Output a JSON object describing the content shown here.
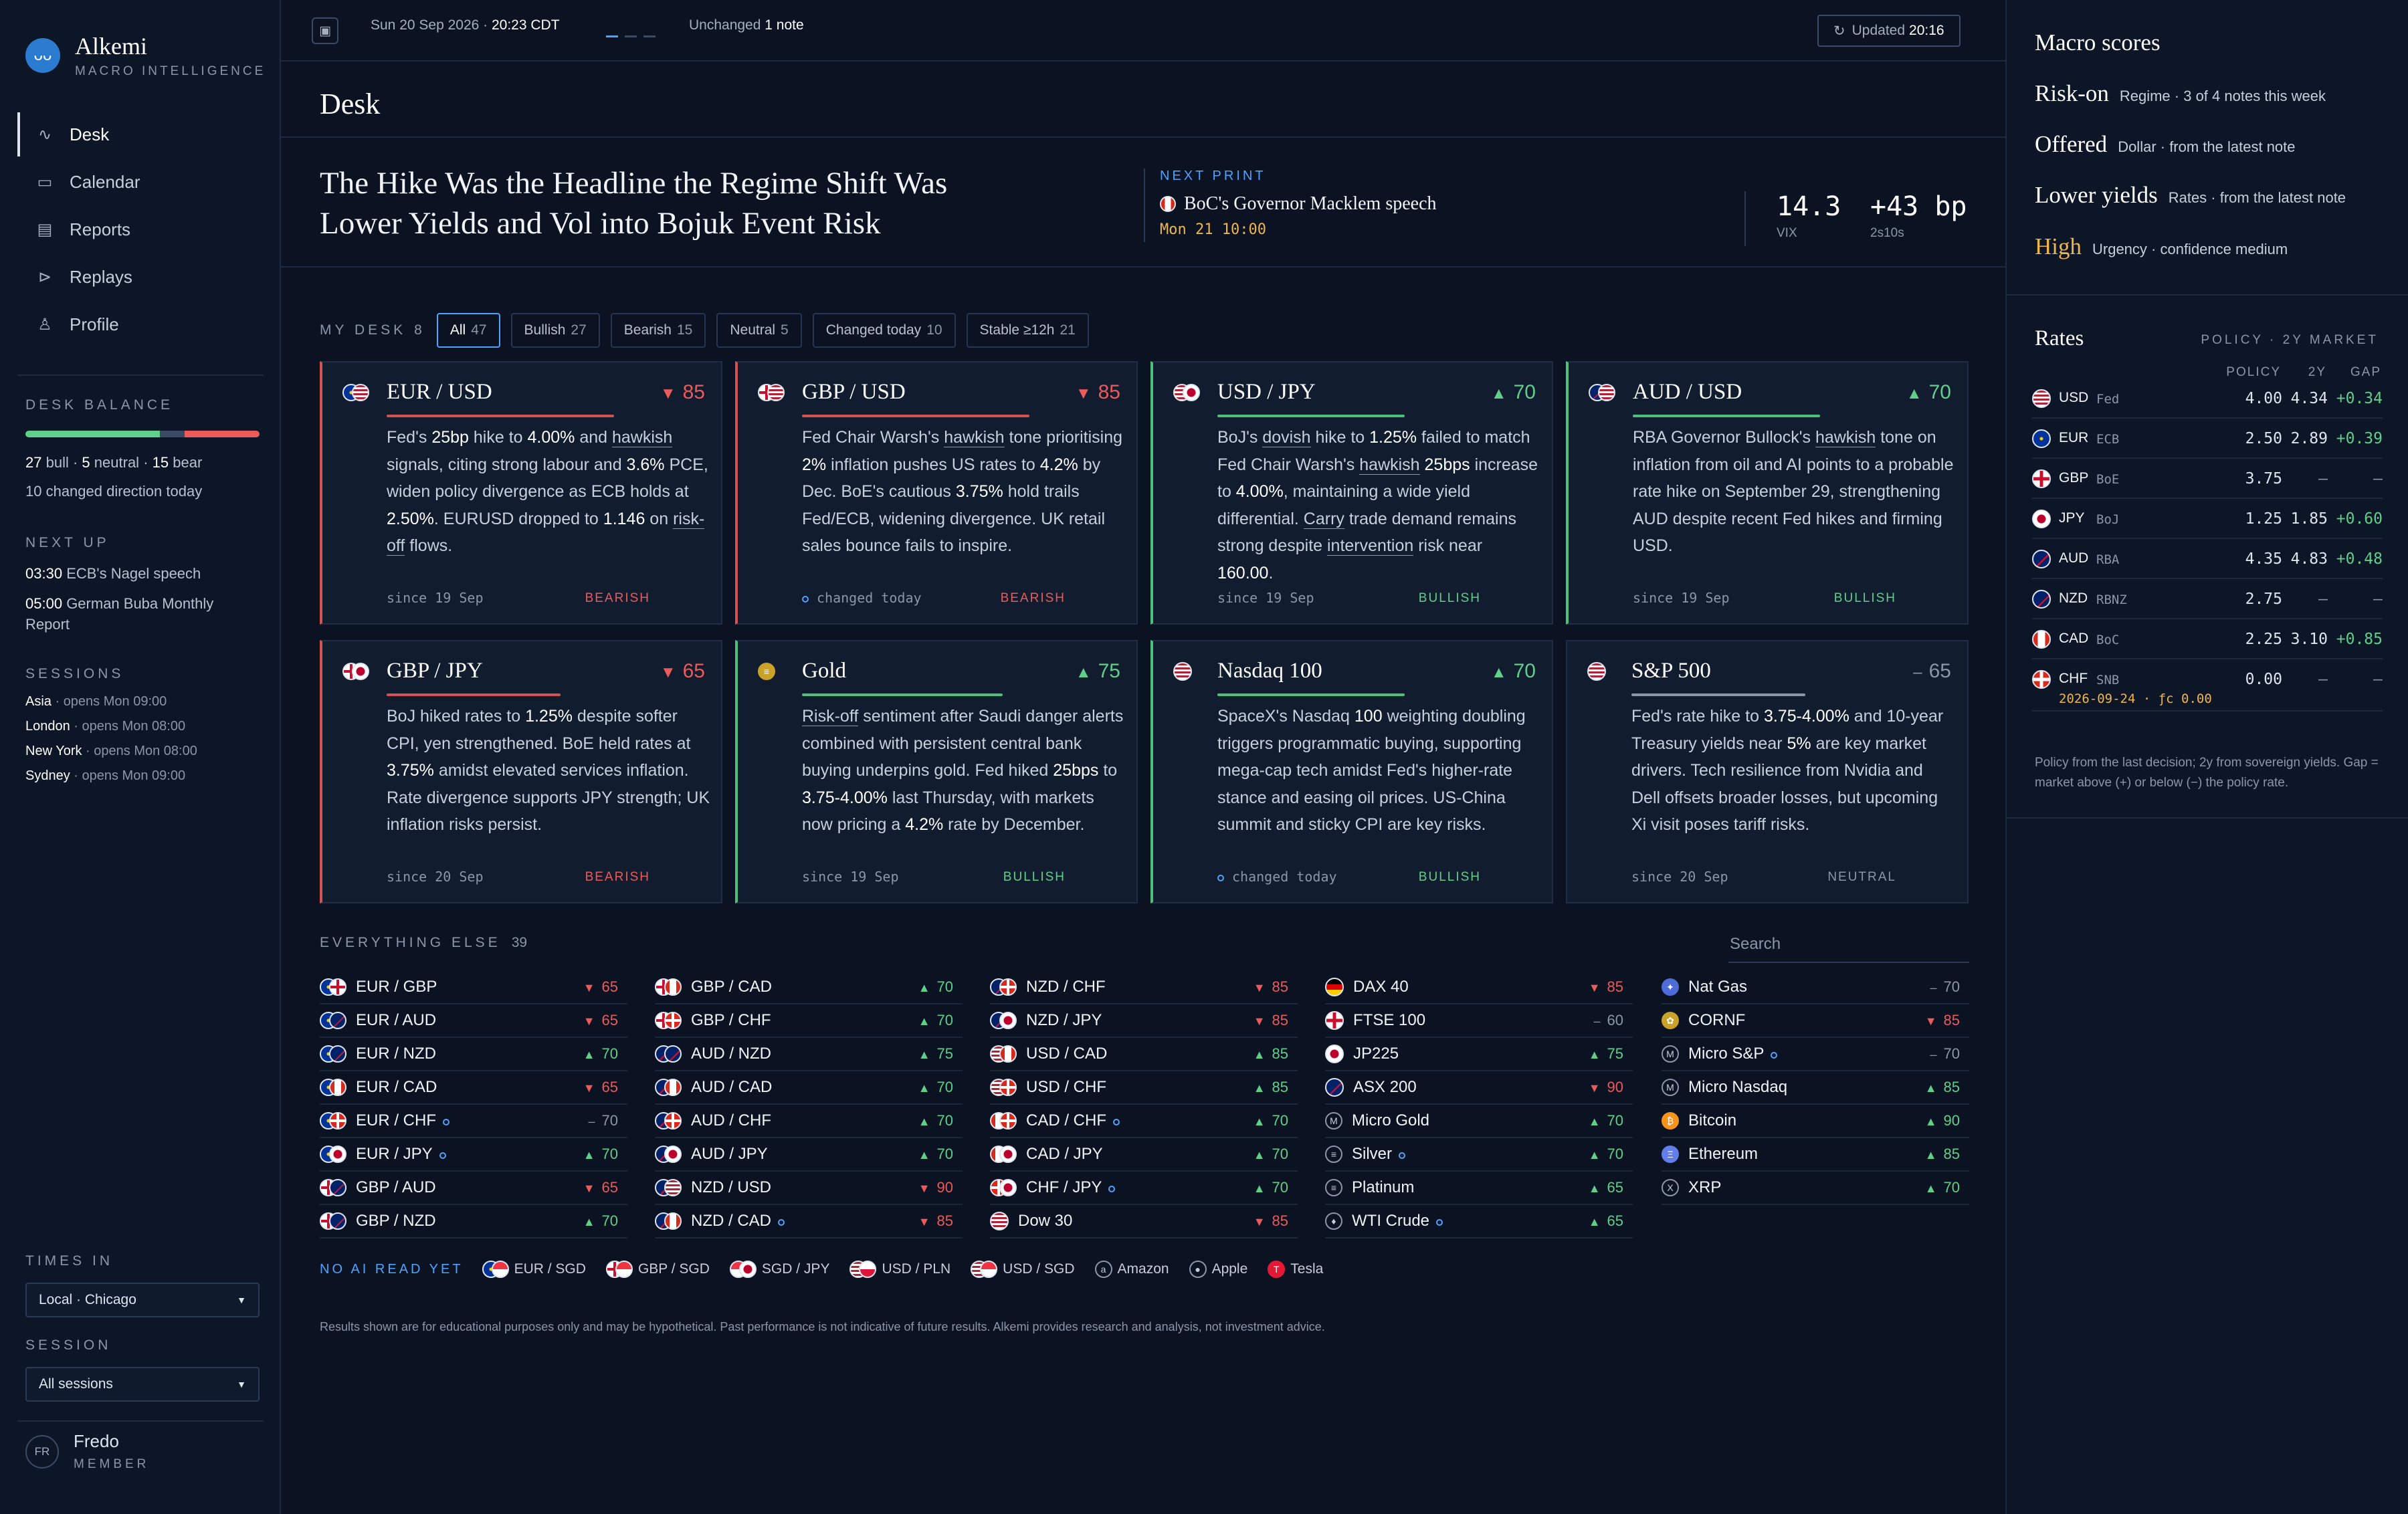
{
  "brand": {
    "name": "Alkemi",
    "sub": "MACRO INTELLIGENCE",
    "logo_icon": "owl-icon"
  },
  "nav": [
    {
      "label": "Desk",
      "icon": "pulse-icon",
      "active": true
    },
    {
      "label": "Calendar",
      "icon": "calendar-icon"
    },
    {
      "label": "Reports",
      "icon": "document-icon"
    },
    {
      "label": "Replays",
      "icon": "play-circle-icon"
    },
    {
      "label": "Profile",
      "icon": "user-icon"
    }
  ],
  "desk_balance": {
    "label": "DESK BALANCE",
    "bull": "27",
    "neutral": "5",
    "bear": "15",
    "bull_word": "bull",
    "neutral_word": "neutral",
    "bear_word": "bear",
    "changed": "10 changed direction today",
    "colors": {
      "bull": "#5fcf8a",
      "neutral": "#3b4b66",
      "bear": "#ec5a5a"
    }
  },
  "next_up": {
    "label": "NEXT UP",
    "items": [
      {
        "time": "03:30",
        "text": "ECB's Nagel speech"
      },
      {
        "time": "05:00",
        "text": "German Buba Monthly Report"
      }
    ]
  },
  "sessions": {
    "label": "SESSIONS",
    "items": [
      {
        "name": "Asia",
        "status": "opens Mon 09:00"
      },
      {
        "name": "London",
        "status": "opens Mon 08:00"
      },
      {
        "name": "New York",
        "status": "opens Mon 08:00"
      },
      {
        "name": "Sydney",
        "status": "opens Mon 09:00"
      }
    ]
  },
  "times_in": {
    "label": "TIMES IN",
    "value": "Local · Chicago"
  },
  "session_select": {
    "label": "SESSION",
    "value": "All sessions"
  },
  "user": {
    "initials": "FR",
    "name": "Fredo",
    "role": "MEMBER"
  },
  "topbar": {
    "date": "Sun 20 Sep 2026 ·",
    "time": "20:23 CDT",
    "unchanged": "Unchanged",
    "note": "1 note",
    "updated_label": "Updated",
    "updated_time": "20:16"
  },
  "page_title": "Desk",
  "headline": "The Hike Was the Headline the Regime Shift Was Lower Yields and Vol into Bojuk Event Risk",
  "next_print": {
    "label": "NEXT PRINT",
    "title": "BoC's Governor Macklem speech",
    "time": "Mon 21 10:00"
  },
  "stats": [
    {
      "value": "14.3",
      "label": "VIX"
    },
    {
      "value": "+43 bp",
      "label": "2s10s"
    }
  ],
  "my_desk": {
    "label": "MY DESK",
    "count": "8",
    "filters": [
      {
        "label": "All",
        "count": "47",
        "active": true
      },
      {
        "label": "Bullish",
        "count": "27"
      },
      {
        "label": "Bearish",
        "count": "15"
      },
      {
        "label": "Neutral",
        "count": "5"
      },
      {
        "label": "Changed today",
        "count": "10"
      },
      {
        "label": "Stable ≥12h",
        "count": "21"
      }
    ]
  },
  "cards": [
    {
      "name": "EUR / USD",
      "dir": "▼",
      "score": "85",
      "stance": "BEARISH",
      "since": "since 19 Sep",
      "fill": 0.85,
      "body": "Fed's <b>25bp</b> hike to <b>4.00%</b> and <u>hawkish</u> signals, citing strong labour and <b>3.6%</b> PCE, widen policy divergence as ECB holds at <b>2.50%</b>. EURUSD dropped to <b>1.146</b> on <u>risk-off</u> flows."
    },
    {
      "name": "GBP / USD",
      "dir": "▼",
      "score": "85",
      "stance": "BEARISH",
      "since": "changed today",
      "changed": true,
      "fill": 0.85,
      "body": "Fed Chair Warsh's <u>hawkish</u> tone prioritising <b>2%</b> inflation pushes US rates to <b>4.2%</b> by Dec. BoE's cautious <b>3.75%</b> hold trails Fed/ECB, widening divergence. UK retail sales bounce fails to inspire."
    },
    {
      "name": "USD / JPY",
      "dir": "▲",
      "score": "70",
      "stance": "BULLISH",
      "since": "since 19 Sep",
      "fill": 0.7,
      "body": "BoJ's <u>dovish</u> hike to <b>1.25%</b> failed to match Fed Chair Warsh's <u>hawkish</u> <b>25bps</b> increase to <b>4.00%</b>, maintaining a wide yield differential. <u>Carry</u> trade demand remains strong despite <u>intervention</u> risk near <b>160.00</b>."
    },
    {
      "name": "AUD / USD",
      "dir": "▲",
      "score": "70",
      "stance": "BULLISH",
      "since": "since 19 Sep",
      "fill": 0.7,
      "body": "RBA Governor Bullock's <u>hawkish</u> tone on inflation from oil and AI points to a probable rate hike on September 29, strengthening AUD despite recent Fed hikes and firming USD."
    },
    {
      "name": "GBP / JPY",
      "dir": "▼",
      "score": "65",
      "stance": "BEARISH",
      "since": "since 20 Sep",
      "fill": 0.65,
      "body": "BoJ hiked rates to <b>1.25%</b> despite softer CPI, yen strengthened. BoE held rates at <b>3.75%</b> amidst elevated services inflation. Rate divergence supports JPY strength; UK inflation risks persist."
    },
    {
      "name": "Gold",
      "dir": "▲",
      "score": "75",
      "stance": "BULLISH",
      "since": "since 19 Sep",
      "fill": 0.75,
      "body": "<u>Risk-off</u> sentiment after Saudi danger alerts combined with persistent central bank buying underpins gold. Fed hiked <b>25bps</b> to <b>3.75-4.00%</b> last Thursday, with markets now pricing a <b>4.2%</b> rate by December."
    },
    {
      "name": "Nasdaq 100",
      "dir": "▲",
      "score": "70",
      "stance": "BULLISH",
      "since": "changed today",
      "changed": true,
      "fill": 0.7,
      "body": "SpaceX's Nasdaq <b>100</b> weighting doubling triggers programmatic buying, supporting mega-cap tech amidst Fed's higher-rate stance and easing oil prices. US-China summit and sticky CPI are key risks."
    },
    {
      "name": "S&P 500",
      "dir": "–",
      "score": "65",
      "stance": "NEUTRAL",
      "since": "since 20 Sep",
      "fill": 0.65,
      "body": "Fed's rate hike to <b>3.75-4.00%</b> and 10-year Treasury yields near <b>5%</b> are key market drivers. Tech resilience from Nvidia and Dell offsets broader losses, but upcoming Xi visit poses tariff risks."
    }
  ],
  "everything_else": {
    "label": "EVERYTHING ELSE",
    "count": "39",
    "search_placeholder": "Search",
    "columns": [
      [
        {
          "name": "EUR / GBP",
          "dir": "▼",
          "score": "65"
        },
        {
          "name": "EUR / AUD",
          "dir": "▼",
          "score": "65"
        },
        {
          "name": "EUR / NZD",
          "dir": "▲",
          "score": "70"
        },
        {
          "name": "EUR / CAD",
          "dir": "▼",
          "score": "65"
        },
        {
          "name": "EUR / CHF",
          "dir": "–",
          "score": "70",
          "dot": true
        },
        {
          "name": "EUR / JPY",
          "dir": "▲",
          "score": "70",
          "dot": true
        },
        {
          "name": "GBP / AUD",
          "dir": "▼",
          "score": "65"
        },
        {
          "name": "GBP / NZD",
          "dir": "▲",
          "score": "70"
        }
      ],
      [
        {
          "name": "GBP / CAD",
          "dir": "▲",
          "score": "70"
        },
        {
          "name": "GBP / CHF",
          "dir": "▲",
          "score": "70"
        },
        {
          "name": "AUD / NZD",
          "dir": "▲",
          "score": "75"
        },
        {
          "name": "AUD / CAD",
          "dir": "▲",
          "score": "70"
        },
        {
          "name": "AUD / CHF",
          "dir": "▲",
          "score": "70"
        },
        {
          "name": "AUD / JPY",
          "dir": "▲",
          "score": "70"
        },
        {
          "name": "NZD / USD",
          "dir": "▼",
          "score": "90"
        },
        {
          "name": "NZD / CAD",
          "dir": "▼",
          "score": "85",
          "dot": true
        }
      ],
      [
        {
          "name": "NZD / CHF",
          "dir": "▼",
          "score": "85"
        },
        {
          "name": "NZD / JPY",
          "dir": "▼",
          "score": "85"
        },
        {
          "name": "USD / CAD",
          "dir": "▲",
          "score": "85"
        },
        {
          "name": "USD / CHF",
          "dir": "▲",
          "score": "85"
        },
        {
          "name": "CAD / CHF",
          "dir": "▲",
          "score": "70",
          "dot": true
        },
        {
          "name": "CAD / JPY",
          "dir": "▲",
          "score": "70"
        },
        {
          "name": "CHF / JPY",
          "dir": "▲",
          "score": "70",
          "dot": true
        },
        {
          "name": "Dow 30",
          "dir": "▼",
          "score": "85"
        }
      ],
      [
        {
          "name": "DAX 40",
          "dir": "▼",
          "score": "85"
        },
        {
          "name": "FTSE 100",
          "dir": "–",
          "score": "60"
        },
        {
          "name": "JP225",
          "dir": "▲",
          "score": "75"
        },
        {
          "name": "ASX 200",
          "dir": "▼",
          "score": "90"
        },
        {
          "name": "Micro Gold",
          "dir": "▲",
          "score": "70"
        },
        {
          "name": "Silver",
          "dir": "▲",
          "score": "70",
          "dot": true
        },
        {
          "name": "Platinum",
          "dir": "▲",
          "score": "65"
        },
        {
          "name": "WTI Crude",
          "dir": "▲",
          "score": "65",
          "dot": true
        }
      ],
      [
        {
          "name": "Nat Gas",
          "dir": "–",
          "score": "70"
        },
        {
          "name": "CORNF",
          "dir": "▼",
          "score": "85"
        },
        {
          "name": "Micro S&P",
          "dir": "–",
          "score": "70",
          "dot": true
        },
        {
          "name": "Micro Nasdaq",
          "dir": "▲",
          "score": "85"
        },
        {
          "name": "Bitcoin",
          "dir": "▲",
          "score": "90"
        },
        {
          "name": "Ethereum",
          "dir": "▲",
          "score": "85"
        },
        {
          "name": "XRP",
          "dir": "▲",
          "score": "70"
        }
      ]
    ]
  },
  "no_ai_read": {
    "label": "NO AI READ YET",
    "items": [
      "EUR / SGD",
      "GBP / SGD",
      "SGD / JPY",
      "USD / PLN",
      "USD / SGD",
      "Amazon",
      "Apple",
      "Tesla"
    ]
  },
  "disclaimer": "Results shown are for educational purposes only and may be hypothetical. Past performance is not indicative of future results. Alkemi provides research and analysis, not investment advice.",
  "macro": {
    "title": "Macro scores",
    "rows": [
      {
        "big": "Risk-on",
        "small": "Regime · 3 of 4 notes this week"
      },
      {
        "big": "Offered",
        "small": "Dollar · from the latest note"
      },
      {
        "big": "Lower yields",
        "small": "Rates · from the latest note"
      },
      {
        "big": "High",
        "small": "Urgency · confidence medium",
        "warn": true
      }
    ]
  },
  "rates": {
    "title": "Rates",
    "subtitle": "POLICY · 2Y MARKET",
    "cols": [
      "POLICY",
      "2Y",
      "GAP"
    ],
    "rows": [
      {
        "cur": "USD",
        "cb": "Fed",
        "policy": "4.00",
        "two": "4.34",
        "gap": "+0.34"
      },
      {
        "cur": "EUR",
        "cb": "ECB",
        "policy": "2.50",
        "two": "2.89",
        "gap": "+0.39"
      },
      {
        "cur": "GBP",
        "cb": "BoE",
        "policy": "3.75",
        "two": "–",
        "gap": "–"
      },
      {
        "cur": "JPY",
        "cb": "BoJ",
        "policy": "1.25",
        "two": "1.85",
        "gap": "+0.60"
      },
      {
        "cur": "AUD",
        "cb": "RBA",
        "policy": "4.35",
        "two": "4.83",
        "gap": "+0.48"
      },
      {
        "cur": "NZD",
        "cb": "RBNZ",
        "policy": "2.75",
        "two": "–",
        "gap": "–"
      },
      {
        "cur": "CAD",
        "cb": "BoC",
        "policy": "2.25",
        "two": "3.10",
        "gap": "+0.85"
      },
      {
        "cur": "CHF",
        "cb": "SNB",
        "policy": "0.00",
        "two": "–",
        "gap": "–",
        "sub": "2026-09-24 · ƒc 0.00"
      }
    ],
    "note": "Policy from the last decision; 2y from sovereign yields. Gap = market above (+) or below (−) the policy rate."
  }
}
